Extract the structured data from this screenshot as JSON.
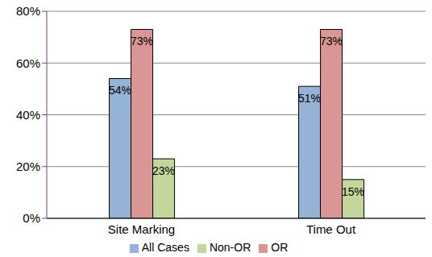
{
  "chart_data": {
    "type": "bar",
    "categories": [
      "Site Marking",
      "Time Out"
    ],
    "series": [
      {
        "name": "All Cases",
        "color": "#95b3d7",
        "values": [
          54,
          51
        ],
        "value_labels": [
          "54%",
          "51%"
        ]
      },
      {
        "name": "OR",
        "color": "#d99694",
        "values": [
          73,
          73
        ],
        "value_labels": [
          "73%",
          "73%"
        ]
      },
      {
        "name": "Non-OR",
        "color": "#c3d69b",
        "values": [
          23,
          15
        ],
        "value_labels": [
          "23%",
          "15%"
        ]
      }
    ],
    "ylim": [
      0,
      80
    ],
    "yticks": [
      {
        "value": 0,
        "label": "0%"
      },
      {
        "value": 20,
        "label": "20%"
      },
      {
        "value": 40,
        "label": "40%"
      },
      {
        "value": 60,
        "label": "60%"
      },
      {
        "value": 80,
        "label": "80%"
      }
    ],
    "grid": true,
    "legend": "bottom",
    "data_labels": true
  }
}
